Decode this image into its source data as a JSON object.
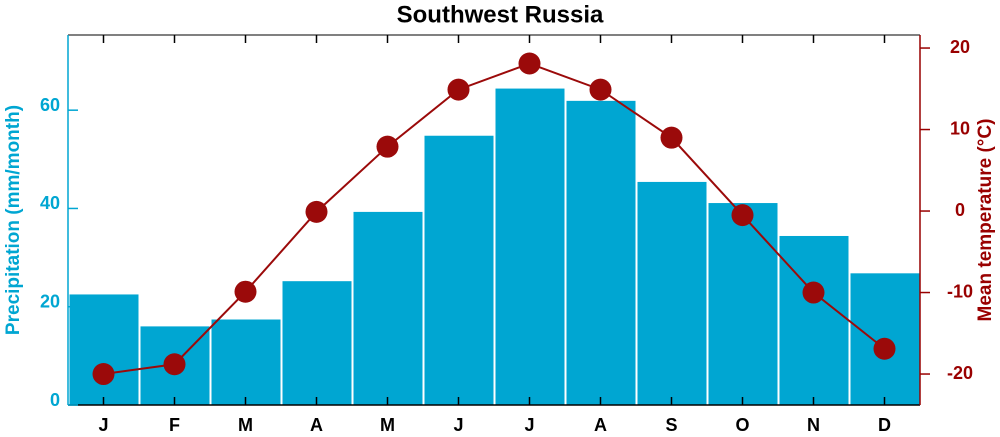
{
  "chart_data": {
    "type": "bar-line",
    "title": "Southwest Russia",
    "categories": [
      "J",
      "F",
      "M",
      "A",
      "M",
      "J",
      "J",
      "A",
      "S",
      "O",
      "N",
      "D"
    ],
    "series": [
      {
        "name": "Precipitation (mm/month)",
        "type": "bar",
        "color": "#00a6d2",
        "axis": "y",
        "values": [
          22.6,
          16.1,
          17.5,
          25.3,
          39.4,
          54.9,
          64.5,
          62.0,
          45.5,
          41.2,
          34.5,
          26.9
        ]
      },
      {
        "name": "Mean temperature (°C)",
        "type": "line",
        "color": "#9b0a0a",
        "axis": "y2",
        "values": [
          -20.0,
          -18.8,
          -9.9,
          -0.1,
          7.9,
          14.9,
          18.1,
          14.9,
          9.0,
          -0.5,
          -10.0,
          -16.9
        ]
      }
    ],
    "ylabel": "Precipitation (mm/month)",
    "y2label": "Mean temperature (°C)",
    "ylim": [
      0,
      75.3
    ],
    "yticks": [
      0,
      20,
      40,
      60
    ],
    "y2lim": [
      -23.8,
      21.6
    ],
    "y2ticks": [
      -20,
      -10,
      0,
      10,
      20
    ],
    "y_color": "#00a6d2",
    "y2_color": "#990000"
  }
}
